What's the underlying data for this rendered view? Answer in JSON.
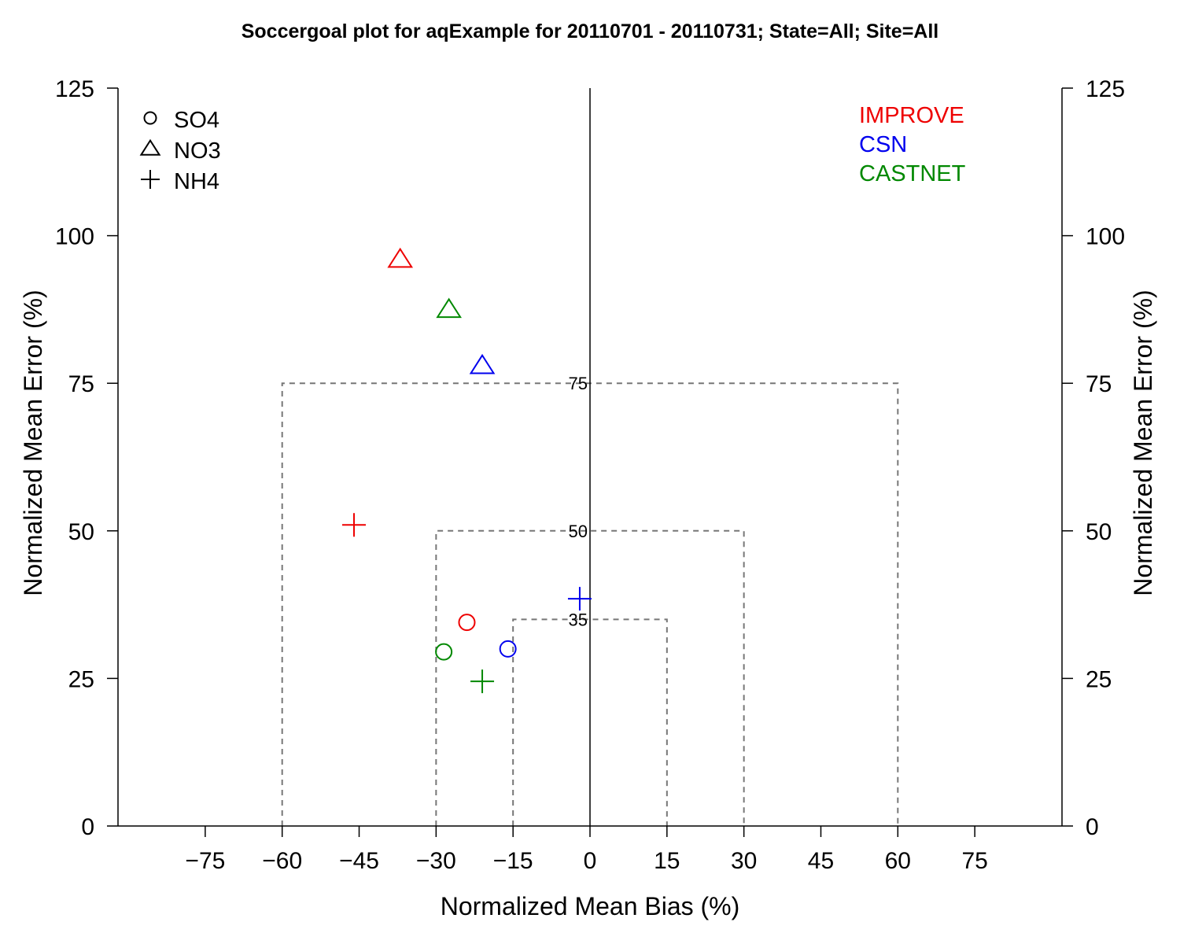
{
  "chart_data": {
    "type": "scatter",
    "title": "Soccergoal plot for aqExample for 20110701 - 20110731; State=All; Site=All",
    "xlabel": "Normalized Mean Bias (%)",
    "ylabel": "Normalized Mean Error (%)",
    "ylabel_right": "Normalized Mean Error (%)",
    "xlim": [
      -92,
      92
    ],
    "ylim": [
      0,
      125
    ],
    "x_ticks": [
      -75,
      -60,
      -45,
      -30,
      -15,
      0,
      15,
      30,
      45,
      60,
      75
    ],
    "x_tick_labels": [
      "−75",
      "−60",
      "−45",
      "−30",
      "−15",
      "0",
      "15",
      "30",
      "45",
      "60",
      "75"
    ],
    "y_ticks": [
      0,
      25,
      50,
      75,
      100,
      125
    ],
    "y_tick_labels": [
      "0",
      "25",
      "50",
      "75",
      "100",
      "125"
    ],
    "goals": [
      {
        "bias": 60,
        "error": 75,
        "label": "75"
      },
      {
        "bias": 30,
        "error": 50,
        "label": "50"
      },
      {
        "bias": 15,
        "error": 35,
        "label": "35"
      }
    ],
    "symbol_legend": [
      {
        "marker": "circle",
        "label": "SO4"
      },
      {
        "marker": "triangle",
        "label": "NO3"
      },
      {
        "marker": "plus",
        "label": "NH4"
      }
    ],
    "network_legend": [
      {
        "name": "IMPROVE",
        "color": "#ee0000"
      },
      {
        "name": "CSN",
        "color": "#0000ee"
      },
      {
        "name": "CASTNET",
        "color": "#008800"
      }
    ],
    "series": [
      {
        "name": "IMPROVE",
        "color": "#ee0000",
        "points": [
          {
            "species": "SO4",
            "marker": "circle",
            "x": -24,
            "y": 34.5
          },
          {
            "species": "NO3",
            "marker": "triangle",
            "x": -37,
            "y": 96
          },
          {
            "species": "NH4",
            "marker": "plus",
            "x": -46,
            "y": 51
          }
        ]
      },
      {
        "name": "CSN",
        "color": "#0000ee",
        "points": [
          {
            "species": "SO4",
            "marker": "circle",
            "x": -16,
            "y": 30
          },
          {
            "species": "NO3",
            "marker": "triangle",
            "x": -21,
            "y": 78
          },
          {
            "species": "NH4",
            "marker": "plus",
            "x": -2,
            "y": 38.5
          }
        ]
      },
      {
        "name": "CASTNET",
        "color": "#008800",
        "points": [
          {
            "species": "SO4",
            "marker": "circle",
            "x": -28.5,
            "y": 29.5
          },
          {
            "species": "NO3",
            "marker": "triangle",
            "x": -27.5,
            "y": 87.5
          },
          {
            "species": "NH4",
            "marker": "plus",
            "x": -21,
            "y": 24.5
          }
        ]
      }
    ]
  }
}
